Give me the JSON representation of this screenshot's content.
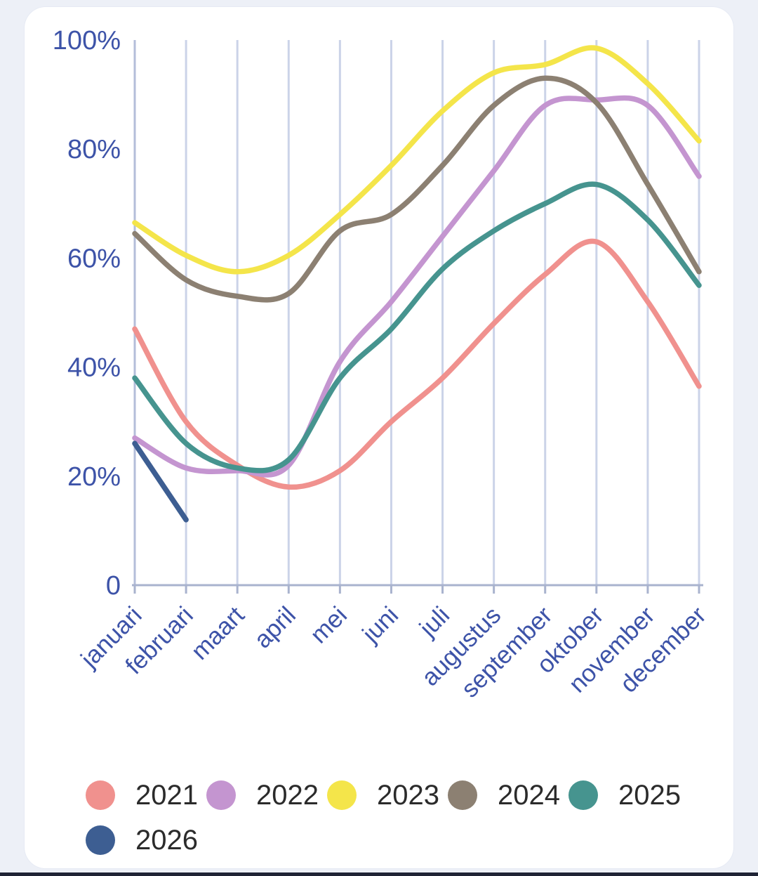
{
  "page": {
    "background_color": "#EDF0F7",
    "card_background_color": "#FFFFFF",
    "bottom_bar_color": "#1F2335"
  },
  "chart_data": {
    "type": "line",
    "title": "",
    "xlabel": "",
    "ylabel": "",
    "categories": [
      "januari",
      "februari",
      "maart",
      "april",
      "mei",
      "juni",
      "juli",
      "augustus",
      "september",
      "oktober",
      "november",
      "december"
    ],
    "y_ticks": [
      {
        "value": 100,
        "label": "100%"
      },
      {
        "value": 80,
        "label": "80%"
      },
      {
        "value": 60,
        "label": "60%"
      },
      {
        "value": 40,
        "label": "40%"
      },
      {
        "value": 20,
        "label": "20%"
      },
      {
        "value": 0,
        "label": "0"
      }
    ],
    "ylim": [
      0,
      100
    ],
    "grid": "vertical-only",
    "legend_position": "bottom",
    "axis_label_color": "#3D53A8",
    "gridline_color": "#CBD3E8",
    "axis_line_color": "#A9B3CE",
    "series": [
      {
        "name": "2021",
        "color": "#F0918E",
        "values": [
          47,
          30,
          22,
          18,
          21,
          30,
          38,
          48,
          57,
          63,
          52,
          36.5
        ]
      },
      {
        "name": "2022",
        "color": "#C495D0",
        "values": [
          27,
          21.5,
          21,
          22,
          41,
          52,
          64,
          76,
          88,
          89,
          88,
          75
        ]
      },
      {
        "name": "2023",
        "color": "#F4E54A",
        "values": [
          66.5,
          60.5,
          57.5,
          60.5,
          68,
          77,
          87,
          94,
          95.5,
          98.5,
          92,
          81.5
        ]
      },
      {
        "name": "2024",
        "color": "#8C8072",
        "values": [
          64.5,
          56,
          53,
          53.5,
          65,
          68,
          77,
          88,
          93,
          88.5,
          73.5,
          57.5
        ]
      },
      {
        "name": "2025",
        "color": "#46948F",
        "values": [
          38,
          26,
          21.5,
          23,
          38,
          47,
          58,
          65,
          70,
          73.5,
          67,
          55
        ]
      },
      {
        "name": "2026",
        "color": "#3D5E92",
        "values": [
          26,
          12,
          null,
          null,
          null,
          null,
          null,
          null,
          null,
          null,
          null,
          null
        ]
      }
    ]
  }
}
